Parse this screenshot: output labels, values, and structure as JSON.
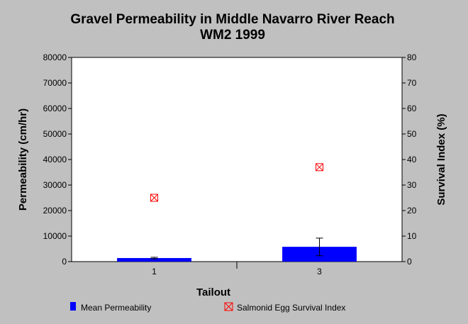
{
  "chart_data": {
    "type": "bar",
    "title": "Gravel Permeability in Middle Navarro River Reach",
    "subtitle": "WM2 1999",
    "xlabel": "Tailout",
    "ylabel": "Permeability (cm/hr)",
    "y2label": "Survival Index (%)",
    "categories": [
      "1",
      "3"
    ],
    "ylim": [
      0,
      80000
    ],
    "y2lim": [
      0,
      80
    ],
    "yticks": [
      "0",
      "10000",
      "20000",
      "30000",
      "40000",
      "50000",
      "60000",
      "70000",
      "80000"
    ],
    "y2ticks": [
      "0",
      "10",
      "20",
      "30",
      "40",
      "50",
      "60",
      "70",
      "80"
    ],
    "grid": false,
    "legend_position": "bottom",
    "series": [
      {
        "name": "Mean Permeability",
        "kind": "bar",
        "axis": "left",
        "color": "#0000ff",
        "values": [
          1400,
          5800
        ],
        "error_low": [
          1100,
          2300
        ],
        "error_high": [
          1700,
          9200
        ]
      },
      {
        "name": "Salmonid Egg Survival Index",
        "kind": "marker",
        "marker": "boxed-x",
        "axis": "right",
        "color": "#ff0000",
        "values": [
          25,
          37
        ]
      }
    ]
  }
}
